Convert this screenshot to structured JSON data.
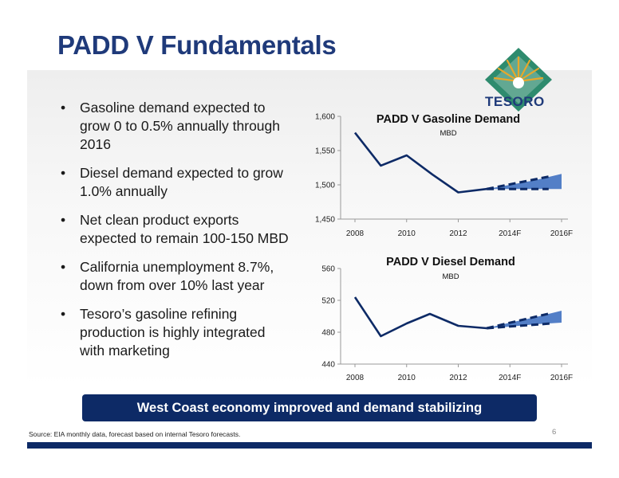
{
  "slide": {
    "title": "PADD V Fundamentals",
    "logo_text": "TESORO",
    "bullets": [
      "Gasoline demand expected to grow 0  to 0.5% annually through 2016",
      "Diesel demand expected to grow 1.0% annually",
      "Net clean product exports expected to remain 100-150 MBD",
      "California unemployment 8.7%, down from over 10% last year",
      "Tesoro’s gasoline refining production is highly integrated with marketing"
    ],
    "banner": "West Coast economy improved and demand stabilizing",
    "source": "Source:  EIA monthly data, forecast based on internal Tesoro forecasts.",
    "page_number": "6"
  },
  "colors": {
    "title": "#1f3a7a",
    "line": "#0d2a66",
    "forecast_band": "#4a78c4",
    "banner": "#0d2a66",
    "logo_green": "#2e8b6e",
    "logo_gold": "#e8a72a"
  },
  "chart_data": [
    {
      "type": "line",
      "title": "PADD V Gasoline Demand",
      "subtitle": "MBD",
      "x_tick_labels": [
        "2008",
        "2010",
        "2012",
        "2014F",
        "2016F"
      ],
      "y_tick_labels": [
        "1,450",
        "1,500",
        "1,550",
        "1,600"
      ],
      "ylim": [
        1450,
        1600
      ],
      "xlim": [
        2008,
        2016
      ],
      "grid": false,
      "series": [
        {
          "values": [
            [
              2008.0,
              1576
            ],
            [
              2009.0,
              1528
            ],
            [
              2010.0,
              1543
            ],
            [
              2011.0,
              1515
            ],
            [
              2012.0,
              1489
            ],
            [
              2013.1,
              1494
            ]
          ]
        }
      ],
      "forecast": {
        "upper": [
          [
            2013.1,
            1494
          ],
          [
            2014.0,
            1500
          ],
          [
            2015.0,
            1507
          ],
          [
            2016.0,
            1516
          ]
        ],
        "lower": [
          [
            2013.1,
            1494
          ],
          [
            2014.0,
            1494
          ],
          [
            2015.0,
            1494
          ],
          [
            2016.0,
            1494
          ]
        ],
        "dashed_upper_end": [
          2015.5,
          1512
        ],
        "dashed_lower_end": [
          2015.5,
          1494
        ]
      }
    },
    {
      "type": "line",
      "title": "PADD V Diesel Demand",
      "subtitle": "MBD",
      "x_tick_labels": [
        "2008",
        "2010",
        "2012",
        "2014F",
        "2016F"
      ],
      "y_tick_labels": [
        "440",
        "480",
        "520",
        "560"
      ],
      "ylim": [
        440,
        560
      ],
      "xlim": [
        2008,
        2016
      ],
      "grid": false,
      "series": [
        {
          "values": [
            [
              2008.0,
              524
            ],
            [
              2009.0,
              475
            ],
            [
              2010.0,
              491
            ],
            [
              2010.9,
              503
            ],
            [
              2012.0,
              488
            ],
            [
              2013.1,
              485
            ]
          ]
        }
      ],
      "forecast": {
        "upper": [
          [
            2013.1,
            485
          ],
          [
            2014.0,
            492
          ],
          [
            2015.0,
            499
          ],
          [
            2016.0,
            507
          ]
        ],
        "lower": [
          [
            2013.1,
            485
          ],
          [
            2014.0,
            487
          ],
          [
            2015.0,
            490
          ],
          [
            2016.0,
            492
          ]
        ],
        "dashed_upper_end": [
          2015.6,
          504
        ],
        "dashed_lower_end": [
          2015.6,
          491
        ]
      }
    }
  ]
}
